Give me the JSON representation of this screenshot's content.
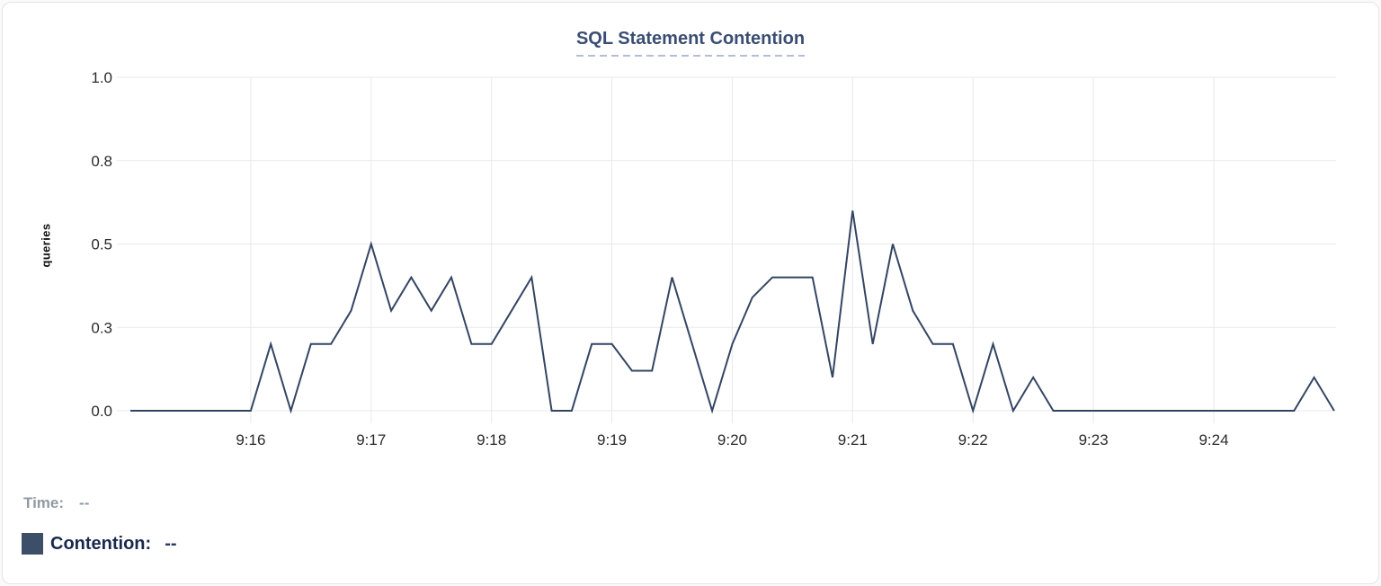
{
  "title": "SQL Statement Contention",
  "tooltip": {
    "time_label": "Time:",
    "time_value": "--",
    "contention_label": "Contention:",
    "contention_value": "--"
  },
  "colors": {
    "line": "#344563",
    "legend_swatch": "#3d4f68",
    "title": "#3a4e73",
    "title_underline": "#b5bbd8",
    "grid": "#e9e9e9",
    "axis_text": "#2b2b2b",
    "muted_text": "#9199a3",
    "legend_text": "#18294e"
  },
  "chart_data": {
    "type": "line",
    "title": "SQL Statement Contention",
    "xlabel": "",
    "ylabel": "queries",
    "ylim": [
      0,
      1
    ],
    "grid": true,
    "legend_position": "bottom-left",
    "y_ticks": [
      {
        "value": 0,
        "label": "0.0"
      },
      {
        "value": 0.25,
        "label": "0.3"
      },
      {
        "value": 0.5,
        "label": "0.5"
      },
      {
        "value": 0.75,
        "label": "0.8"
      },
      {
        "value": 1,
        "label": "1.0"
      }
    ],
    "x_ticks": [
      {
        "t": 60,
        "label": "9:16"
      },
      {
        "t": 120,
        "label": "9:17"
      },
      {
        "t": 180,
        "label": "9:18"
      },
      {
        "t": 240,
        "label": "9:19"
      },
      {
        "t": 300,
        "label": "9:20"
      },
      {
        "t": 360,
        "label": "9:21"
      },
      {
        "t": 420,
        "label": "9:22"
      },
      {
        "t": 480,
        "label": "9:23"
      },
      {
        "t": 540,
        "label": "9:24"
      }
    ],
    "series": [
      {
        "name": "Contention",
        "start_time": "9:15:00",
        "end_time": "9:25:00",
        "interval_seconds": 10,
        "values": [
          0,
          0,
          0,
          0,
          0,
          0,
          0,
          0.2,
          0,
          0.2,
          0.2,
          0.3,
          0.5,
          0.3,
          0.4,
          0.3,
          0.4,
          0.2,
          0.2,
          0.3,
          0.4,
          0,
          0,
          0.2,
          0.2,
          0.12,
          0.12,
          0.4,
          0.2,
          0,
          0.2,
          0.34,
          0.4,
          0.4,
          0.4,
          0.1,
          0.6,
          0.2,
          0.5,
          0.3,
          0.2,
          0.2,
          0,
          0.2,
          0,
          0.1,
          0,
          0,
          0,
          0,
          0,
          0,
          0,
          0,
          0,
          0,
          0,
          0,
          0,
          0.1,
          0
        ]
      }
    ]
  }
}
